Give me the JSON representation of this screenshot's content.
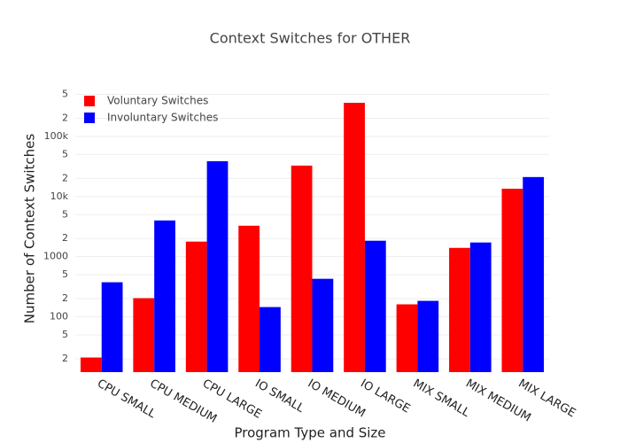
{
  "chart_data": {
    "type": "bar",
    "title": "Context Switches for OTHER",
    "x_label": "Program Type and Size",
    "y_label": "Number of Context Switches",
    "categories": [
      "CPU SMALL",
      "CPU MEDIUM",
      "CPU LARGE",
      "IO SMALL",
      "IO MEDIUM",
      "IO LARGE",
      "MIX SMALL",
      "MIX MEDIUM",
      "MIX LARGE"
    ],
    "series": [
      {
        "name": "Voluntary Switches",
        "color": "#ff0000",
        "values": [
          21,
          204,
          1780,
          3270,
          32700,
          362000,
          161,
          1400,
          13500
        ]
      },
      {
        "name": "Involuntary Switches",
        "color": "#0000ff",
        "values": [
          375,
          4000,
          38700,
          145,
          428,
          1840,
          184,
          1720,
          21100
        ]
      }
    ],
    "log_y": true,
    "ylim": [
      12,
      740000
    ],
    "yticks": [
      {
        "value": 20,
        "label": "2"
      },
      {
        "value": 50,
        "label": "5"
      },
      100,
      {
        "value": 200,
        "label": "2"
      },
      {
        "value": 500,
        "label": "5"
      },
      1000,
      {
        "value": 2000,
        "label": "2"
      },
      {
        "value": 5000,
        "label": "5"
      },
      {
        "value": 10000,
        "label": "10k"
      },
      {
        "value": 20000,
        "label": "2"
      },
      {
        "value": 50000,
        "label": "5"
      },
      {
        "value": 100000,
        "label": "100k"
      },
      {
        "value": 200000,
        "label": "2"
      },
      {
        "value": 500000,
        "label": "5"
      }
    ],
    "grid": true,
    "legend": "top-left"
  }
}
